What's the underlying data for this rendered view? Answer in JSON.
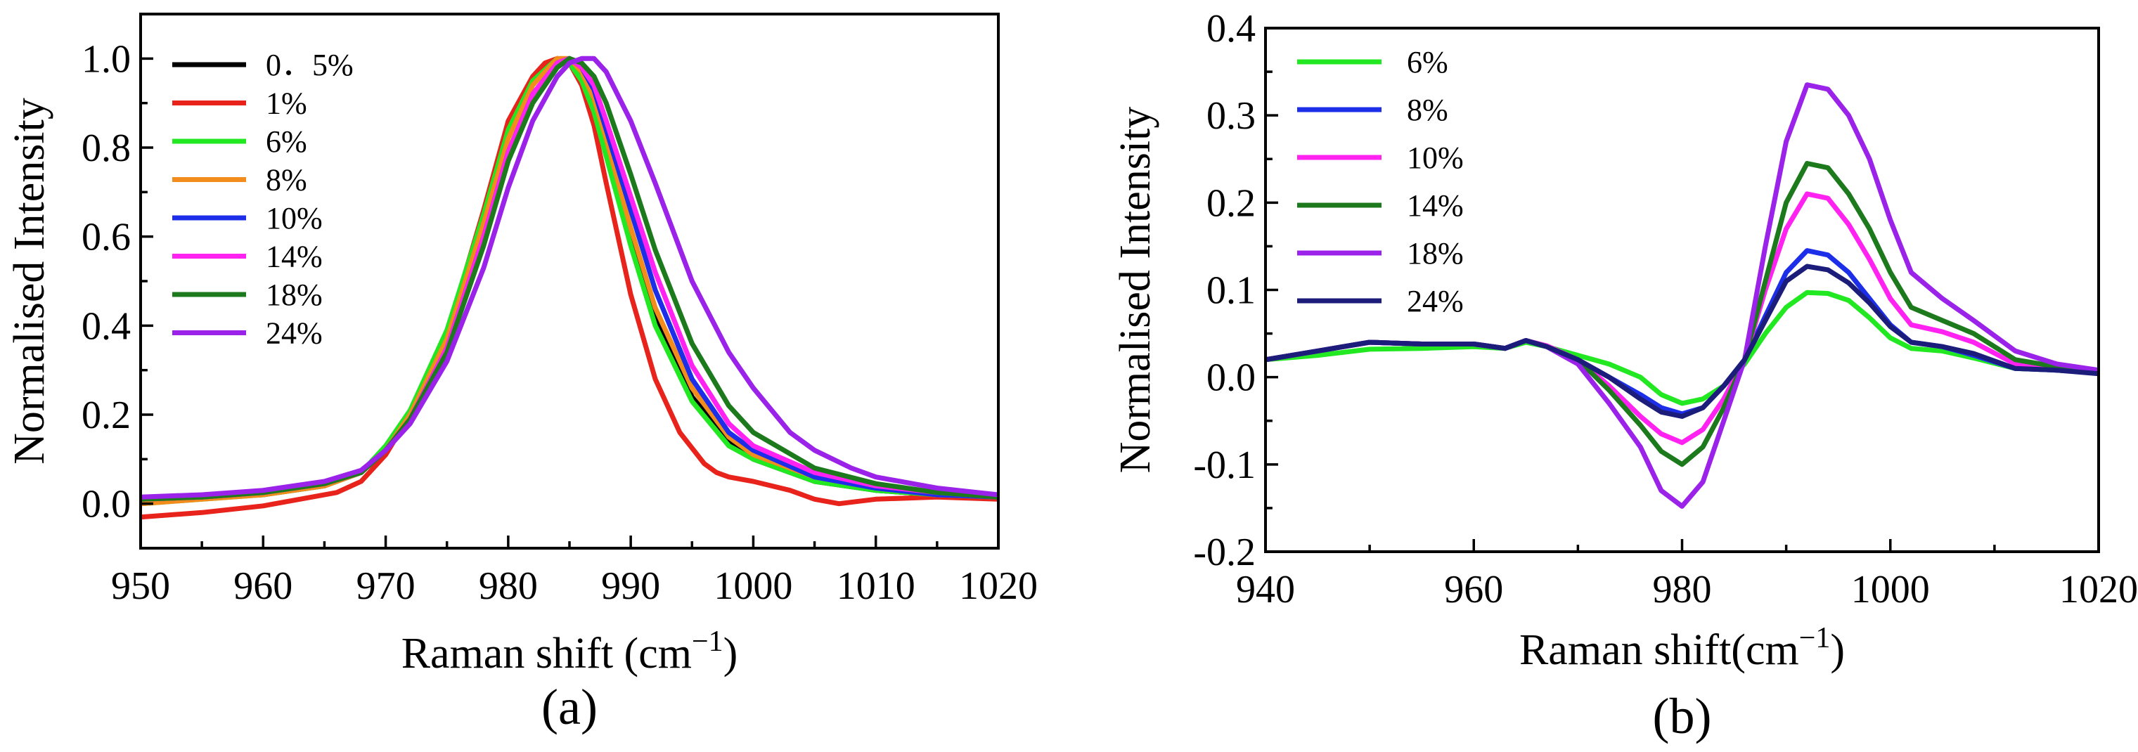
{
  "figure": {
    "panels": [
      "(a)",
      "(b)"
    ]
  },
  "chart_data": [
    {
      "id": "a",
      "type": "line",
      "panel_label": "(a)",
      "xlabel": "Raman shift (cm",
      "xlabel_sup": "−1",
      "xlabel_close": ")",
      "ylabel": "Normalised Intensity",
      "xlim": [
        950,
        1020
      ],
      "ylim": [
        -0.1,
        1.1
      ],
      "xticks": [
        950,
        960,
        970,
        980,
        990,
        1000,
        1010,
        1020
      ],
      "xtick_labels": [
        "950",
        "960",
        "970",
        "980",
        "990",
        "1000",
        "1010",
        "1020"
      ],
      "yticks": [
        0.0,
        0.2,
        0.4,
        0.6,
        0.8,
        1.0
      ],
      "ytick_labels": [
        "0.0",
        "0.2",
        "0.4",
        "0.6",
        "0.8",
        "1.0"
      ],
      "legend_position": "top-left",
      "series": [
        {
          "name": "0．5%",
          "color": "#000000",
          "x": [
            950,
            955,
            960,
            965,
            968,
            970,
            972,
            975,
            978,
            980,
            982,
            984,
            985,
            986,
            987,
            988,
            990,
            992,
            995,
            998,
            1000,
            1005,
            1010,
            1015,
            1020
          ],
          "y": [
            0.01,
            0.015,
            0.02,
            0.04,
            0.07,
            0.12,
            0.2,
            0.37,
            0.63,
            0.83,
            0.95,
            1.0,
            0.995,
            0.96,
            0.9,
            0.8,
            0.6,
            0.42,
            0.24,
            0.14,
            0.1,
            0.05,
            0.03,
            0.02,
            0.015
          ]
        },
        {
          "name": "1%",
          "color": "#e8231c",
          "x": [
            950,
            955,
            960,
            963,
            966,
            968,
            970,
            972,
            975,
            978,
            980,
            982,
            983,
            984,
            985,
            986,
            987,
            988,
            990,
            992,
            994,
            996,
            997,
            998,
            1000,
            1003,
            1005,
            1007,
            1010,
            1015,
            1020
          ],
          "y": [
            -0.03,
            -0.02,
            -0.005,
            0.01,
            0.025,
            0.05,
            0.11,
            0.2,
            0.38,
            0.66,
            0.86,
            0.96,
            0.99,
            1.0,
            0.99,
            0.94,
            0.85,
            0.72,
            0.47,
            0.28,
            0.16,
            0.09,
            0.07,
            0.06,
            0.05,
            0.03,
            0.01,
            0.0,
            0.01,
            0.015,
            0.01
          ]
        },
        {
          "name": "6%",
          "color": "#22e822",
          "x": [
            950,
            955,
            960,
            965,
            968,
            970,
            972,
            975,
            978,
            980,
            982,
            984,
            985,
            986,
            987,
            988,
            990,
            992,
            995,
            998,
            1000,
            1005,
            1010,
            1015,
            1020
          ],
          "y": [
            0.0,
            0.01,
            0.02,
            0.04,
            0.07,
            0.13,
            0.21,
            0.39,
            0.65,
            0.84,
            0.95,
            1.0,
            0.99,
            0.95,
            0.88,
            0.78,
            0.58,
            0.4,
            0.23,
            0.13,
            0.1,
            0.05,
            0.03,
            0.02,
            0.015
          ]
        },
        {
          "name": "8%",
          "color": "#f28c1c",
          "x": [
            950,
            955,
            960,
            965,
            968,
            970,
            972,
            975,
            978,
            980,
            982,
            984,
            985,
            986,
            987,
            988,
            990,
            992,
            995,
            998,
            1000,
            1005,
            1010,
            1015,
            1020
          ],
          "y": [
            0.0,
            0.01,
            0.02,
            0.04,
            0.07,
            0.12,
            0.2,
            0.37,
            0.63,
            0.82,
            0.94,
            1.0,
            1.0,
            0.97,
            0.91,
            0.82,
            0.62,
            0.44,
            0.26,
            0.15,
            0.11,
            0.06,
            0.035,
            0.02,
            0.015
          ]
        },
        {
          "name": "10%",
          "color": "#1c2ee8",
          "x": [
            950,
            955,
            960,
            965,
            968,
            970,
            972,
            975,
            978,
            980,
            982,
            984,
            985,
            986,
            987,
            988,
            990,
            992,
            995,
            998,
            1000,
            1005,
            1010,
            1015,
            1020
          ],
          "y": [
            0.01,
            0.015,
            0.025,
            0.045,
            0.07,
            0.12,
            0.19,
            0.35,
            0.6,
            0.79,
            0.92,
            0.99,
            1.0,
            0.98,
            0.93,
            0.84,
            0.66,
            0.48,
            0.28,
            0.16,
            0.12,
            0.06,
            0.035,
            0.02,
            0.015
          ]
        },
        {
          "name": "14%",
          "color": "#ff22f0",
          "x": [
            950,
            955,
            960,
            965,
            968,
            970,
            972,
            975,
            978,
            980,
            982,
            984,
            985,
            986,
            987,
            988,
            990,
            992,
            995,
            998,
            1000,
            1005,
            1010,
            1015,
            1020
          ],
          "y": [
            0.01,
            0.015,
            0.025,
            0.045,
            0.07,
            0.12,
            0.19,
            0.35,
            0.6,
            0.79,
            0.92,
            0.99,
            1.0,
            0.98,
            0.94,
            0.86,
            0.69,
            0.52,
            0.31,
            0.18,
            0.13,
            0.07,
            0.04,
            0.025,
            0.015
          ]
        },
        {
          "name": "18%",
          "color": "#1c7a1c",
          "x": [
            950,
            955,
            960,
            965,
            968,
            970,
            972,
            975,
            978,
            980,
            982,
            984,
            985,
            986,
            987,
            988,
            990,
            992,
            995,
            998,
            1000,
            1005,
            1010,
            1015,
            1020
          ],
          "y": [
            0.01,
            0.015,
            0.025,
            0.045,
            0.07,
            0.12,
            0.19,
            0.34,
            0.58,
            0.77,
            0.9,
            0.98,
            1.0,
            0.99,
            0.96,
            0.9,
            0.74,
            0.57,
            0.36,
            0.22,
            0.16,
            0.08,
            0.045,
            0.025,
            0.015
          ]
        },
        {
          "name": "24%",
          "color": "#9b22e8",
          "x": [
            950,
            955,
            960,
            965,
            968,
            970,
            972,
            975,
            978,
            980,
            982,
            984,
            985,
            986,
            987,
            988,
            990,
            992,
            995,
            998,
            1000,
            1003,
            1005,
            1008,
            1010,
            1015,
            1020
          ],
          "y": [
            0.015,
            0.02,
            0.03,
            0.05,
            0.075,
            0.12,
            0.18,
            0.32,
            0.53,
            0.71,
            0.86,
            0.96,
            0.99,
            1.0,
            1.0,
            0.97,
            0.86,
            0.72,
            0.5,
            0.34,
            0.26,
            0.16,
            0.12,
            0.08,
            0.06,
            0.035,
            0.02
          ]
        }
      ]
    },
    {
      "id": "b",
      "type": "line",
      "panel_label": "(b)",
      "xlabel": "Raman shift(cm",
      "xlabel_sup": "−1",
      "xlabel_close": ")",
      "ylabel": "Normalised Intensity",
      "xlim": [
        940,
        1020
      ],
      "ylim": [
        -0.2,
        0.4
      ],
      "xticks": [
        940,
        960,
        980,
        1000,
        1020
      ],
      "xtick_labels": [
        "940",
        "960",
        "980",
        "1000",
        "1020"
      ],
      "yticks": [
        -0.2,
        -0.1,
        0.0,
        0.1,
        0.2,
        0.3,
        0.4
      ],
      "ytick_labels": [
        "-0.2",
        "-0.1",
        "0.0",
        "0.1",
        "0.2",
        "0.3",
        "0.4"
      ],
      "legend_position": "top-left",
      "series": [
        {
          "name": "6%",
          "color": "#22e822",
          "x": [
            940,
            945,
            950,
            955,
            960,
            963,
            965,
            967,
            970,
            973,
            976,
            978,
            980,
            982,
            984,
            986,
            988,
            990,
            992,
            994,
            996,
            998,
            1000,
            1002,
            1005,
            1008,
            1012,
            1016,
            1020
          ],
          "y": [
            0.02,
            0.025,
            0.032,
            0.033,
            0.035,
            0.033,
            0.04,
            0.035,
            0.025,
            0.015,
            0.0,
            -0.02,
            -0.03,
            -0.025,
            -0.01,
            0.015,
            0.05,
            0.08,
            0.097,
            0.096,
            0.088,
            0.068,
            0.045,
            0.033,
            0.03,
            0.022,
            0.01,
            0.008,
            0.005
          ]
        },
        {
          "name": "8%",
          "color": "#1c2ee8",
          "x": [
            940,
            945,
            950,
            955,
            960,
            963,
            965,
            967,
            970,
            973,
            976,
            978,
            980,
            982,
            984,
            986,
            988,
            990,
            992,
            994,
            996,
            998,
            1000,
            1002,
            1005,
            1008,
            1012,
            1016,
            1020
          ],
          "y": [
            0.02,
            0.03,
            0.04,
            0.038,
            0.038,
            0.033,
            0.042,
            0.035,
            0.02,
            0.0,
            -0.02,
            -0.035,
            -0.042,
            -0.035,
            -0.01,
            0.02,
            0.07,
            0.12,
            0.145,
            0.14,
            0.12,
            0.09,
            0.06,
            0.04,
            0.035,
            0.025,
            0.01,
            0.008,
            0.005
          ]
        },
        {
          "name": "10%",
          "color": "#ff22f0",
          "x": [
            940,
            945,
            950,
            955,
            960,
            963,
            965,
            967,
            970,
            973,
            976,
            978,
            980,
            982,
            984,
            986,
            988,
            990,
            992,
            994,
            996,
            998,
            1000,
            1002,
            1005,
            1008,
            1012,
            1016,
            1020
          ],
          "y": [
            0.02,
            0.03,
            0.04,
            0.038,
            0.038,
            0.033,
            0.042,
            0.036,
            0.02,
            -0.01,
            -0.045,
            -0.065,
            -0.075,
            -0.06,
            -0.025,
            0.02,
            0.1,
            0.17,
            0.21,
            0.205,
            0.175,
            0.135,
            0.09,
            0.06,
            0.052,
            0.04,
            0.015,
            0.01,
            0.005
          ]
        },
        {
          "name": "14%",
          "color": "#1c7a1c",
          "x": [
            940,
            945,
            950,
            955,
            960,
            963,
            965,
            967,
            970,
            973,
            976,
            978,
            980,
            982,
            984,
            986,
            988,
            990,
            992,
            994,
            996,
            998,
            1000,
            1002,
            1005,
            1008,
            1012,
            1016,
            1020
          ],
          "y": [
            0.02,
            0.03,
            0.04,
            0.038,
            0.038,
            0.033,
            0.042,
            0.035,
            0.02,
            -0.015,
            -0.055,
            -0.085,
            -0.1,
            -0.08,
            -0.035,
            0.02,
            0.11,
            0.2,
            0.245,
            0.24,
            0.21,
            0.17,
            0.12,
            0.08,
            0.065,
            0.05,
            0.02,
            0.012,
            0.006
          ]
        },
        {
          "name": "18%",
          "color": "#9b22e8",
          "x": [
            940,
            945,
            950,
            955,
            960,
            963,
            965,
            967,
            970,
            973,
            976,
            978,
            980,
            982,
            984,
            986,
            988,
            990,
            992,
            994,
            996,
            998,
            1000,
            1002,
            1005,
            1008,
            1012,
            1016,
            1020
          ],
          "y": [
            0.02,
            0.03,
            0.04,
            0.038,
            0.038,
            0.033,
            0.042,
            0.035,
            0.015,
            -0.03,
            -0.08,
            -0.13,
            -0.148,
            -0.12,
            -0.05,
            0.02,
            0.15,
            0.27,
            0.335,
            0.33,
            0.3,
            0.25,
            0.18,
            0.12,
            0.09,
            0.065,
            0.03,
            0.015,
            0.008
          ]
        },
        {
          "name": "24%",
          "color": "#1c1c7a",
          "x": [
            940,
            945,
            950,
            955,
            960,
            963,
            965,
            967,
            970,
            973,
            976,
            978,
            980,
            982,
            984,
            986,
            988,
            990,
            992,
            994,
            996,
            998,
            1000,
            1002,
            1005,
            1008,
            1012,
            1016,
            1020
          ],
          "y": [
            0.02,
            0.03,
            0.04,
            0.038,
            0.038,
            0.033,
            0.042,
            0.035,
            0.02,
            0.0,
            -0.025,
            -0.04,
            -0.045,
            -0.035,
            -0.01,
            0.02,
            0.065,
            0.11,
            0.127,
            0.123,
            0.108,
            0.085,
            0.058,
            0.04,
            0.035,
            0.027,
            0.01,
            0.008,
            0.004
          ]
        }
      ]
    }
  ]
}
